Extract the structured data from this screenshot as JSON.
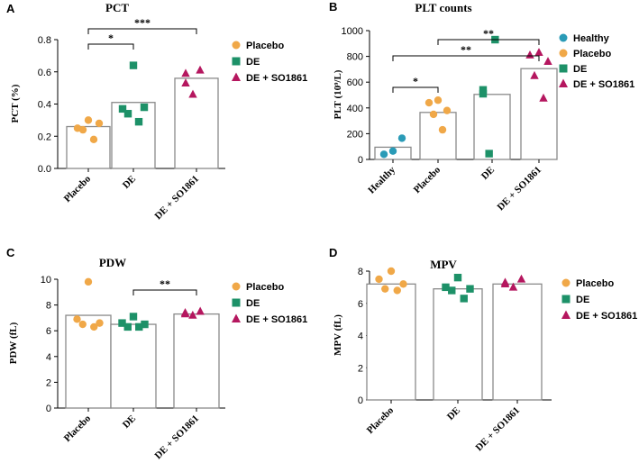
{
  "colors": {
    "Healthy": "#2a9bb7",
    "Placebo": "#f0a848",
    "DE": "#1d9168",
    "DE + SO1861": "#b5175f"
  },
  "chart_data": [
    {
      "type": "bar",
      "panel": "A",
      "title": "PCT",
      "ylabel": "PCT (%)",
      "ylim": [
        0,
        0.8
      ],
      "yticks": [
        "0.0",
        "0.2",
        "0.4",
        "0.6",
        "0.8"
      ],
      "categories": [
        "Placebo",
        "DE",
        "DE + SO1861"
      ],
      "values": [
        0.26,
        0.41,
        0.56
      ],
      "points": [
        [
          0.3,
          0.25,
          0.28,
          0.24,
          0.18
        ],
        [
          0.64,
          0.37,
          0.38,
          0.34,
          0.29
        ],
        [
          0.61,
          0.59,
          0.53,
          0.46
        ]
      ],
      "legend": [
        "Placebo",
        "DE",
        "DE + SO1861"
      ],
      "significance": [
        {
          "from": 0,
          "to": 1,
          "label": "*"
        },
        {
          "from": 0,
          "to": 2,
          "label": "***"
        }
      ]
    },
    {
      "type": "bar",
      "panel": "B",
      "title": "PLT counts",
      "ylabel": "PLT (10⁹/L)",
      "ylim": [
        0,
        1000
      ],
      "yticks": [
        "0",
        "200",
        "400",
        "600",
        "800",
        "1000"
      ],
      "categories": [
        "Healthy",
        "Placebo",
        "DE",
        "DE + SO1861"
      ],
      "values": [
        95,
        365,
        505,
        705
      ],
      "points": [
        [
          165,
          40,
          65
        ],
        [
          460,
          440,
          380,
          350,
          230
        ],
        [
          930,
          540,
          510,
          45
        ],
        [
          830,
          810,
          760,
          650,
          475
        ]
      ],
      "legend": [
        "Healthy",
        "Placebo",
        "DE",
        "DE + SO1861"
      ],
      "significance": [
        {
          "from": 0,
          "to": 1,
          "label": "*"
        },
        {
          "from": 0,
          "to": 3,
          "label": "**"
        },
        {
          "from": 1,
          "to": 3,
          "label": "**"
        }
      ]
    },
    {
      "type": "bar",
      "panel": "C",
      "title": "PDW",
      "ylabel": "PDW (fL)",
      "ylim": [
        0,
        10
      ],
      "yticks": [
        "0",
        "2",
        "4",
        "6",
        "8",
        "10"
      ],
      "categories": [
        "Placebo",
        "DE",
        "DE + SO1861"
      ],
      "values": [
        7.2,
        6.5,
        7.3
      ],
      "points": [
        [
          9.8,
          6.9,
          6.6,
          6.5,
          6.3
        ],
        [
          7.1,
          6.6,
          6.5,
          6.3,
          6.3
        ],
        [
          7.5,
          7.4,
          7.3,
          7.2
        ]
      ],
      "legend": [
        "Placebo",
        "DE",
        "DE + SO1861"
      ],
      "significance": [
        {
          "from": 1,
          "to": 2,
          "label": "**"
        }
      ]
    },
    {
      "type": "bar",
      "panel": "D",
      "title": "MPV",
      "ylabel": "MPV (fL)",
      "ylim": [
        0,
        8
      ],
      "yticks": [
        "0",
        "2",
        "4",
        "6",
        "8"
      ],
      "categories": [
        "Placebo",
        "DE",
        "DE + SO1861"
      ],
      "values": [
        7.2,
        6.9,
        7.2
      ],
      "points": [
        [
          8.0,
          7.5,
          7.2,
          6.9,
          6.8
        ],
        [
          7.6,
          7.0,
          6.9,
          6.8,
          6.3
        ],
        [
          7.5,
          7.3,
          7.2,
          7.0
        ]
      ],
      "legend": [
        "Placebo",
        "DE",
        "DE + SO1861"
      ],
      "significance": []
    }
  ]
}
